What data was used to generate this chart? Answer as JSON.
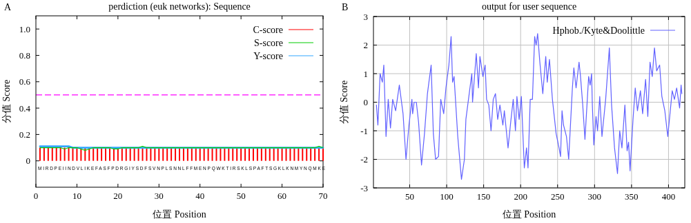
{
  "chart_data": [
    {
      "type": "line",
      "title": "perdiction (euk networks): Sequence",
      "xlabel": "位置 Position",
      "ylabel": "分值 Score",
      "xlim": [
        0,
        70
      ],
      "xticks": [
        0,
        10,
        20,
        30,
        40,
        50,
        60,
        70
      ],
      "ylim": [
        -0.2,
        1.1
      ],
      "yticks": [
        0,
        0.2,
        0.4,
        0.6,
        0.8,
        {
          "value": 1,
          "label": "1.0"
        }
      ],
      "grid": false,
      "legend": "top right",
      "x": [
        1,
        2,
        3,
        4,
        5,
        6,
        7,
        8,
        9,
        10,
        11,
        12,
        13,
        14,
        15,
        16,
        17,
        18,
        19,
        20,
        21,
        22,
        23,
        24,
        25,
        26,
        27,
        28,
        29,
        30,
        31,
        32,
        33,
        34,
        35,
        36,
        37,
        38,
        39,
        40,
        41,
        42,
        43,
        44,
        45,
        46,
        47,
        48,
        49,
        50,
        51,
        52,
        53,
        54,
        55,
        56,
        57,
        58,
        59,
        60,
        61,
        62,
        63,
        64,
        65,
        66,
        67,
        68,
        69,
        70
      ],
      "series": [
        {
          "name": "C-score",
          "type": "bar",
          "color": "#ff0000",
          "values": [
            0.1,
            0.1,
            0.1,
            0.1,
            0.1,
            0.1,
            0.1,
            0.1,
            0.1,
            0.1,
            0.1,
            0.1,
            0.1,
            0.1,
            0.1,
            0.1,
            0.1,
            0.1,
            0.1,
            0.1,
            0.1,
            0.1,
            0.1,
            0.1,
            0.1,
            0.1,
            0.1,
            0.1,
            0.1,
            0.1,
            0.1,
            0.1,
            0.1,
            0.1,
            0.1,
            0.1,
            0.1,
            0.1,
            0.1,
            0.1,
            0.1,
            0.1,
            0.1,
            0.1,
            0.1,
            0.1,
            0.1,
            0.1,
            0.1,
            0.1,
            0.1,
            0.1,
            0.1,
            0.1,
            0.1,
            0.1,
            0.1,
            0.1,
            0.1,
            0.1,
            0.1,
            0.1,
            0.1,
            0.1,
            0.1,
            0.1,
            0.1,
            0.1,
            0.1,
            0.1
          ]
        },
        {
          "name": "S-score",
          "type": "line",
          "color": "#00cc00",
          "values": [
            0.1,
            0.1,
            0.1,
            0.1,
            0.1,
            0.1,
            0.09,
            0.1,
            0.1,
            0.1,
            0.09,
            0.08,
            0.09,
            0.1,
            0.1,
            0.1,
            0.1,
            0.1,
            0.09,
            0.09,
            0.1,
            0.1,
            0.1,
            0.1,
            0.1,
            0.11,
            0.1,
            0.1,
            0.1,
            0.1,
            0.1,
            0.1,
            0.1,
            0.1,
            0.1,
            0.1,
            0.1,
            0.1,
            0.1,
            0.1,
            0.1,
            0.1,
            0.1,
            0.1,
            0.1,
            0.1,
            0.1,
            0.1,
            0.1,
            0.1,
            0.1,
            0.1,
            0.1,
            0.1,
            0.1,
            0.1,
            0.1,
            0.1,
            0.1,
            0.1,
            0.1,
            0.1,
            0.1,
            0.1,
            0.1,
            0.1,
            0.1,
            0.1,
            0.11,
            0.1
          ]
        },
        {
          "name": "Y-score",
          "type": "line",
          "color": "#33a6ff",
          "values": [
            0.11,
            0.11,
            0.11,
            0.11,
            0.11,
            0.11,
            0.11,
            0.11,
            0.1,
            0.1,
            0.1,
            0.1,
            0.1,
            0.1,
            0.1,
            0.1,
            0.1,
            0.1,
            0.1,
            0.1,
            0.1,
            0.1,
            0.1,
            0.1,
            0.1,
            0.1,
            0.1,
            0.1,
            0.1,
            0.1,
            0.1,
            0.1,
            0.1,
            0.1,
            0.1,
            0.1,
            0.1,
            0.1,
            0.1,
            0.1,
            0.1,
            0.1,
            0.1,
            0.1,
            0.1,
            0.1,
            0.1,
            0.1,
            0.1,
            0.1,
            0.1,
            0.1,
            0.1,
            0.1,
            0.1,
            0.1,
            0.1,
            0.1,
            0.1,
            0.1,
            0.1,
            0.1,
            0.1,
            0.1,
            0.1,
            0.1,
            0.1,
            0.1,
            0.1,
            0.1
          ]
        }
      ],
      "ref_lines": [
        {
          "axis": "y",
          "value": 0.5,
          "color": "#ff00ff",
          "line_style": "dashed"
        }
      ],
      "annotations": [
        "A",
        "MIRDPEIINDVLIKEFASFPDRGIYSDFSVNPLSNNLFFMENPQWKTIRSKLSPAFTSGKLKNMYNQMKE"
      ]
    },
    {
      "type": "line",
      "title": "output for user sequence",
      "xlabel": "位置 Position",
      "ylabel": "分值 Score",
      "xlim": [
        1,
        422
      ],
      "xticks": [
        50,
        100,
        150,
        200,
        250,
        300,
        350,
        400
      ],
      "ylim": [
        -3,
        3
      ],
      "yticks": [
        -3,
        -2,
        -1,
        0,
        1,
        2,
        3
      ],
      "grid": true,
      "legend": "top right",
      "series": [
        {
          "name": "Hphob./Kyte&Doolittle",
          "color": "#6060ff",
          "x": [
            5,
            7,
            10,
            13,
            15,
            18,
            21,
            24,
            27,
            31,
            36,
            41,
            45,
            49,
            53,
            54,
            56,
            59,
            62,
            66,
            70,
            74,
            76,
            79,
            82,
            85,
            89,
            92,
            96,
            99,
            103,
            106,
            108,
            110,
            115,
            120,
            124,
            126,
            131,
            134,
            135,
            140,
            143,
            145,
            149,
            152,
            154,
            157,
            160,
            163,
            166,
            169,
            172,
            176,
            178,
            183,
            187,
            190,
            193,
            195,
            198,
            201,
            205,
            208,
            210,
            213,
            216,
            219,
            221,
            223,
            226,
            230,
            234,
            236,
            239,
            243,
            248,
            252,
            254,
            256,
            258,
            262,
            265,
            270,
            272,
            275,
            279,
            281,
            284,
            287,
            292,
            294,
            296,
            297,
            299,
            302,
            304,
            307,
            310,
            315,
            320,
            323,
            327,
            331,
            334,
            337,
            341,
            344,
            346,
            348,
            352,
            355,
            358,
            362,
            365,
            369,
            372,
            375,
            378,
            381,
            384,
            388,
            391,
            395,
            399,
            402,
            405,
            408,
            411,
            415,
            417,
            418
          ],
          "values": [
            -0.1,
            -0.8,
            1.0,
            0.7,
            1.3,
            -1.2,
            0.1,
            -0.9,
            0.1,
            -0.3,
            0.6,
            -0.4,
            -2.0,
            -0.8,
            0.1,
            -0.4,
            0.0,
            0.0,
            -0.7,
            -2.2,
            -1.1,
            0.3,
            0.7,
            1.3,
            -1.1,
            -2.0,
            -1.9,
            0.1,
            -0.4,
            0.5,
            1.3,
            2.3,
            0.7,
            0.9,
            -1.2,
            -2.7,
            -2.0,
            -0.6,
            0.4,
            1.0,
            0.0,
            1.7,
            0.5,
            1.6,
            0.9,
            1.3,
            0.1,
            -0.1,
            -1.0,
            0.1,
            0.3,
            -0.6,
            -0.1,
            -0.8,
            -0.3,
            -1.6,
            -0.6,
            0.1,
            -1.0,
            0.2,
            -0.6,
            0.2,
            -2.3,
            -1.6,
            -2.3,
            0.1,
            0.1,
            2.3,
            2.0,
            2.4,
            1.4,
            0.3,
            1.6,
            0.7,
            1.5,
            0.1,
            -1.1,
            -1.6,
            -1.9,
            -0.3,
            -0.8,
            -1.2,
            -2.0,
            0.5,
            1.2,
            0.5,
            1.4,
            0.9,
            -0.1,
            -1.3,
            0.9,
            0.6,
            1.0,
            -0.1,
            -1.5,
            -0.5,
            -1.0,
            0.2,
            -1.2,
            0.1,
            1.9,
            -0.1,
            -1.6,
            -2.5,
            -1.0,
            -1.6,
            -0.1,
            -1.7,
            -1.4,
            -2.4,
            -0.6,
            0.5,
            -0.3,
            0.4,
            -0.4,
            0.8,
            -0.5,
            1.4,
            0.9,
            1.9,
            1.1,
            1.3,
            0.2,
            -0.3,
            -1.2,
            -0.4,
            0.4,
            0.1,
            0.5,
            -0.2,
            0.6,
            0.3
          ]
        }
      ],
      "annotations": [
        "B"
      ]
    }
  ]
}
